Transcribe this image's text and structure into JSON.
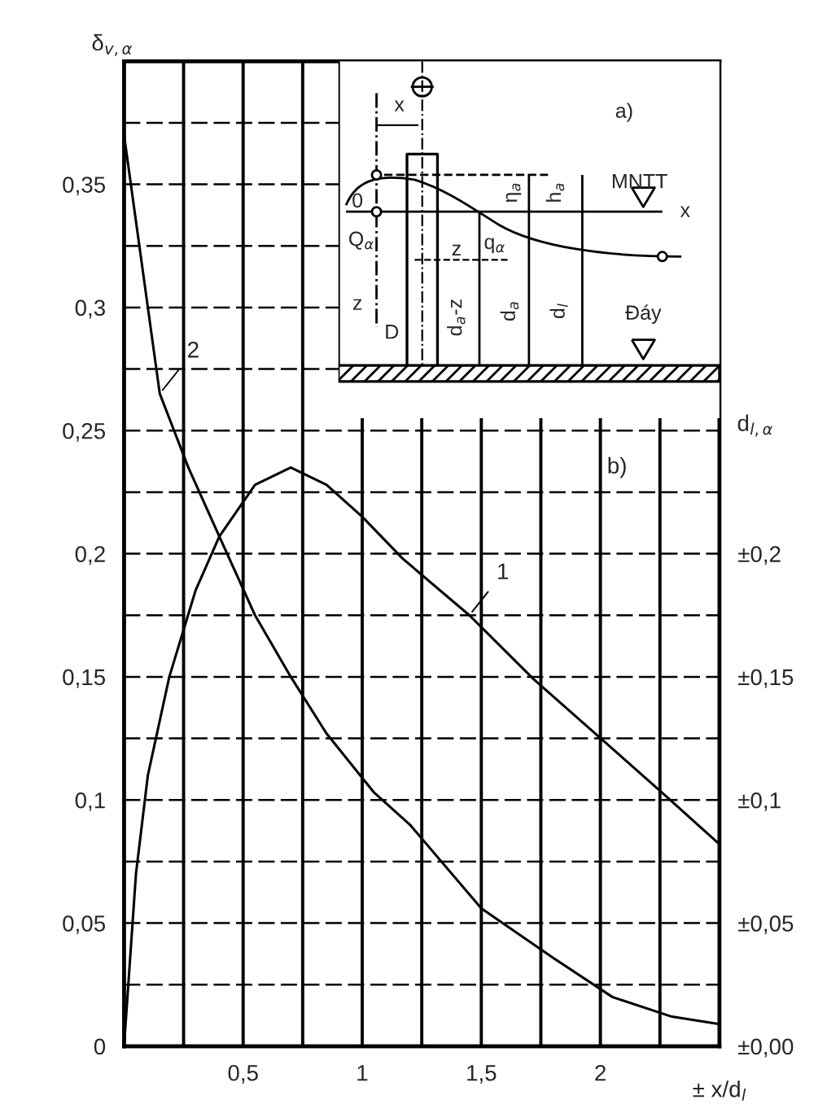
{
  "chart_data": {
    "type": "line",
    "ylabel": "δ$_{v,α}$",
    "y2label": "d$_{l,α}$",
    "xlabel": "± x/d$_{l}$",
    "xlim": [
      0,
      2.5
    ],
    "ylim": [
      0,
      0.4
    ],
    "y2lim": [
      0,
      0.4
    ],
    "xticks": [
      {
        "value": 0.25,
        "label": null
      },
      {
        "value": 0.5,
        "label": "0,5"
      },
      {
        "value": 0.75,
        "label": null
      },
      {
        "value": 1,
        "label": "1"
      },
      {
        "value": 1.25,
        "label": null
      },
      {
        "value": 1.5,
        "label": "1,5"
      },
      {
        "value": 1.75,
        "label": null
      },
      {
        "value": 2,
        "label": "2"
      },
      {
        "value": 2.25,
        "label": null
      }
    ],
    "yticks": [
      {
        "value": 0,
        "label": "0"
      },
      {
        "value": 0.025,
        "label": null
      },
      {
        "value": 0.05,
        "label": "0,05"
      },
      {
        "value": 0.075,
        "label": null
      },
      {
        "value": 0.1,
        "label": "0,1"
      },
      {
        "value": 0.125,
        "label": null
      },
      {
        "value": 0.15,
        "label": "0,15"
      },
      {
        "value": 0.175,
        "label": null
      },
      {
        "value": 0.2,
        "label": "0,2"
      },
      {
        "value": 0.225,
        "label": null
      },
      {
        "value": 0.25,
        "label": "0,25"
      },
      {
        "value": 0.275,
        "label": null
      },
      {
        "value": 0.3,
        "label": "0,3"
      },
      {
        "value": 0.325,
        "label": null
      },
      {
        "value": 0.35,
        "label": "0,35"
      },
      {
        "value": 0.375,
        "label": null
      }
    ],
    "y2ticks": [
      {
        "value": 0,
        "label": "±0,00"
      },
      {
        "value": 0.05,
        "label": "±0,05"
      },
      {
        "value": 0.1,
        "label": "±0,1"
      },
      {
        "value": 0.15,
        "label": "±0,15"
      },
      {
        "value": 0.2,
        "label": "±0,2"
      }
    ],
    "grid": true,
    "marker": "none",
    "line_style": "solid",
    "series": [
      {
        "color": "#000000",
        "x": [
          0,
          0.05,
          0.1,
          0.19,
          0.3,
          0.4,
          0.55,
          0.7,
          0.85,
          1.0,
          1.17,
          1.45,
          1.72,
          1.99,
          2.27,
          2.5
        ],
        "values": [
          0,
          0.07,
          0.11,
          0.15,
          0.185,
          0.207,
          0.228,
          0.235,
          0.228,
          0.215,
          0.198,
          0.175,
          0.149,
          0.126,
          0.102,
          0.082
        ]
      },
      {
        "color": "#000000",
        "x": [
          0,
          0.15,
          0.27,
          0.4,
          0.55,
          0.7,
          0.85,
          1.05,
          1.2,
          1.5,
          1.8,
          2.05,
          2.3,
          2.5
        ],
        "values": [
          0.37,
          0.265,
          0.235,
          0.207,
          0.175,
          0.15,
          0.127,
          0.103,
          0.09,
          0.056,
          0.036,
          0.02,
          0.012,
          0.009
        ]
      }
    ],
    "annotations": [
      {
        "text": "1",
        "x": 1.45,
        "y": 0.175
      },
      {
        "text": "2",
        "x": 0.15,
        "y": 0.265
      },
      "a)",
      "MNTT",
      "x",
      "0",
      "Q$_{α}$",
      "z",
      "D",
      "x",
      "z",
      "q$_{α}$",
      "η$_{a}$",
      "h$_{a}$",
      "d$_{a}$-z",
      "d$_{a}$",
      "d$_{l}$",
      "Đáy",
      "b)"
    ]
  }
}
